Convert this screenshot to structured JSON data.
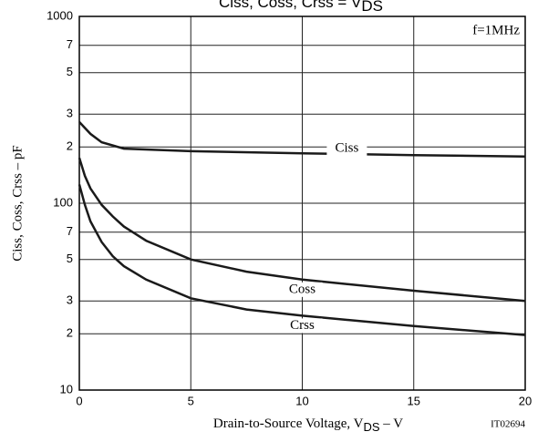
{
  "chart_data": {
    "type": "line",
    "title": "Ciss,  Coss,  Crss  =  V",
    "title_sub": "DS",
    "x_label": "Drain-to-Source Voltage, V",
    "x_label_sub": "DS",
    "x_label_unit": " –  V",
    "y_label": "Ciss, Coss, Crss  –  pF",
    "annotation": "f=1MHz",
    "code": "IT02694",
    "log_y": true,
    "grid": true,
    "xlim": [
      0,
      20
    ],
    "xticks": [
      0,
      5,
      10,
      15,
      20
    ],
    "ylim": [
      10,
      1000
    ],
    "yticks": [
      10,
      {
        "value": 20,
        "label": "2"
      },
      {
        "value": 30,
        "label": "3"
      },
      {
        "value": 50,
        "label": "5"
      },
      {
        "value": 70,
        "label": "7"
      },
      100,
      {
        "value": 200,
        "label": "2"
      },
      {
        "value": 300,
        "label": "3"
      },
      {
        "value": 500,
        "label": "5"
      },
      {
        "value": 700,
        "label": "7"
      },
      1000
    ],
    "series": [
      {
        "name": "Ciss",
        "color": "#1a1a1a",
        "x": [
          0,
          0.5,
          1,
          2,
          5,
          10,
          15,
          20
        ],
        "values": [
          272,
          235,
          212,
          196,
          190,
          185,
          181,
          178
        ]
      },
      {
        "name": "Coss",
        "color": "#1a1a1a",
        "x": [
          0,
          0.25,
          0.5,
          1,
          1.5,
          2,
          3,
          5,
          7.5,
          10,
          15,
          20
        ],
        "values": [
          175,
          140,
          120,
          98,
          85,
          75,
          63,
          50,
          43,
          39,
          34,
          30
        ]
      },
      {
        "name": "Crss",
        "color": "#1a1a1a",
        "x": [
          0,
          0.25,
          0.5,
          1,
          1.5,
          2,
          3,
          5,
          7.5,
          10,
          15,
          20
        ],
        "values": [
          126,
          98,
          80,
          62,
          52,
          46,
          39,
          31,
          27,
          25,
          22,
          19.7
        ]
      }
    ]
  }
}
